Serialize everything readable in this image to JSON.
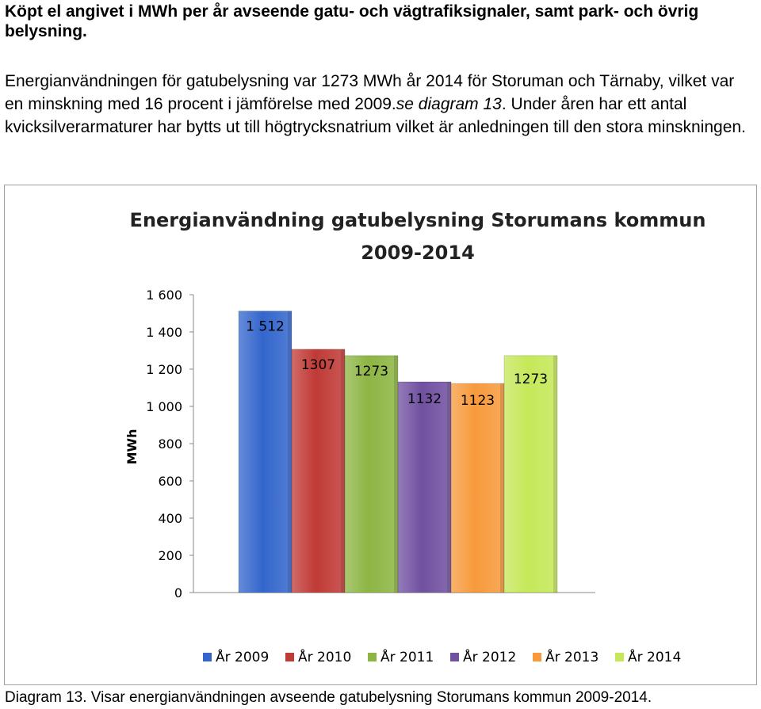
{
  "heading": "Köpt el angivet i MWh per år avseende gatu- och vägtrafiksignaler, samt park- och övrig belysning.",
  "paragraph": {
    "part1": "Energianvändningen för gatubelysning var 1273 MWh år 2014 för Storuman och Tärnaby, vilket var en minskning med 16 procent i jämförelse med 2009.",
    "ref": "se diagram 13",
    "part2": ". Under åren har ett antal kvicksilverarmaturer har bytts ut till högtrycksnatrium vilket är anledningen till den stora minskningen."
  },
  "caption": "Diagram 13. Visar energianvändningen avseende gatubelysning Storumans kommun 2009-2014.",
  "chart_data": {
    "type": "bar",
    "title_line1": "Energianvändning gatubelysning Storumans kommun",
    "title_line2": "2009-2014",
    "ylabel": "MWh",
    "ylim": [
      0,
      1600
    ],
    "yticks": [
      0,
      200,
      400,
      600,
      800,
      1000,
      1200,
      1400,
      1600
    ],
    "ytick_labels": [
      "0",
      "200",
      "400",
      "600",
      "800",
      "1 000",
      "1 200",
      "1 400",
      "1 600"
    ],
    "grid": false,
    "legend_position": "bottom",
    "series": [
      {
        "name": "År 2009",
        "value": 1512,
        "label": "1 512",
        "color": "#3366cc"
      },
      {
        "name": "År 2010",
        "value": 1307,
        "label": "1307",
        "color": "#c03a36"
      },
      {
        "name": "År 2011",
        "value": 1273,
        "label": "1273",
        "color": "#8db543"
      },
      {
        "name": "År 2012",
        "value": 1132,
        "label": "1132",
        "color": "#7050a0"
      },
      {
        "name": "År 2013",
        "value": 1123,
        "label": "1123",
        "color": "#f79a3c"
      },
      {
        "name": "År 2014",
        "value": 1273,
        "label": "1273",
        "color": "#c5e858"
      }
    ]
  }
}
